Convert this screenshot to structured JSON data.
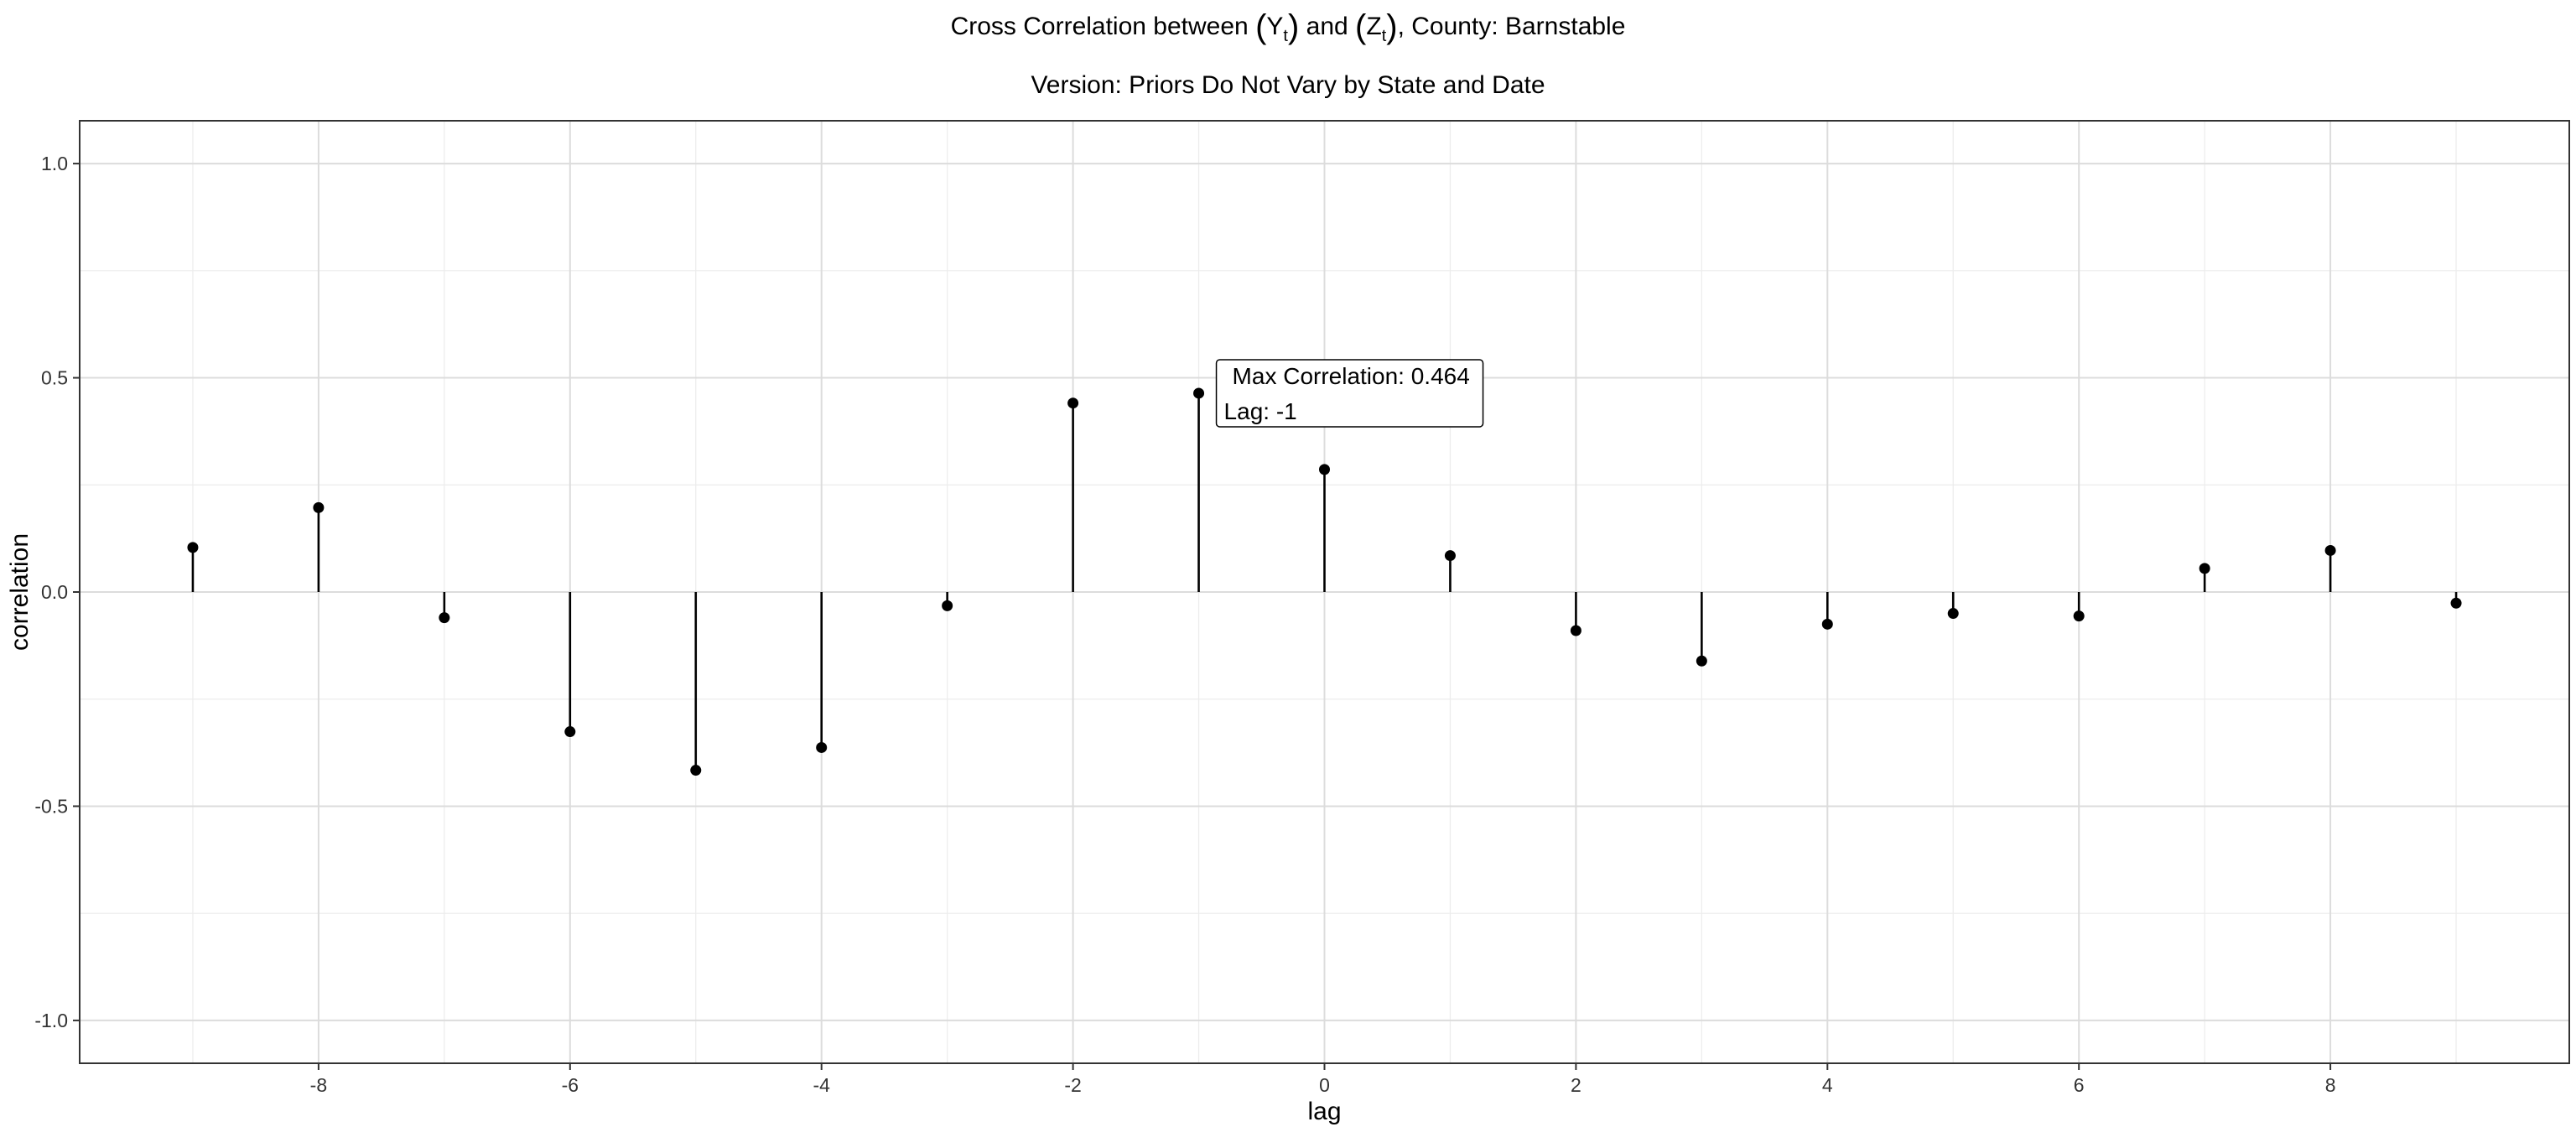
{
  "chart_data": {
    "type": "stem",
    "title": {
      "prefix": "Cross Correlation between ",
      "y_symbol": "Y",
      "z_symbol": "Z",
      "subscript": "t",
      "conjunction": " and ",
      "suffix": ", County: Barnstable"
    },
    "subtitle": "Version: Priors Do Not Vary by State and Date",
    "xlabel": "lag",
    "ylabel": "correlation",
    "xlim": [
      -9.9,
      9.9
    ],
    "ylim": [
      -1.1,
      1.1
    ],
    "x_ticks": [
      -8,
      -6,
      -4,
      -2,
      0,
      2,
      4,
      6,
      8
    ],
    "y_ticks": [
      1.0,
      0.5,
      0.0,
      -0.5,
      -1.0
    ],
    "y_tick_labels": [
      "1.0",
      "0.5",
      "0.0",
      "-0.5",
      "-1.0"
    ],
    "grid": true,
    "x": [
      -9,
      -8,
      -7,
      -6,
      -5,
      -4,
      -3,
      -2,
      -1,
      0,
      1,
      2,
      3,
      4,
      5,
      6,
      7,
      8,
      9
    ],
    "values": [
      0.104,
      0.197,
      -0.06,
      -0.326,
      -0.416,
      -0.363,
      -0.032,
      0.441,
      0.464,
      0.286,
      0.085,
      -0.09,
      -0.161,
      -0.075,
      -0.05,
      -0.056,
      0.055,
      0.097,
      -0.026
    ],
    "annotation": {
      "line1": "Max Correlation: 0.464",
      "line2": "Lag: -1",
      "x": -1,
      "y": 0.464
    }
  },
  "colors": {
    "panel_border": "#333333",
    "grid_major": "#dcdcdc",
    "grid_minor": "#ececec",
    "stem": "#000000",
    "point": "#000000"
  }
}
